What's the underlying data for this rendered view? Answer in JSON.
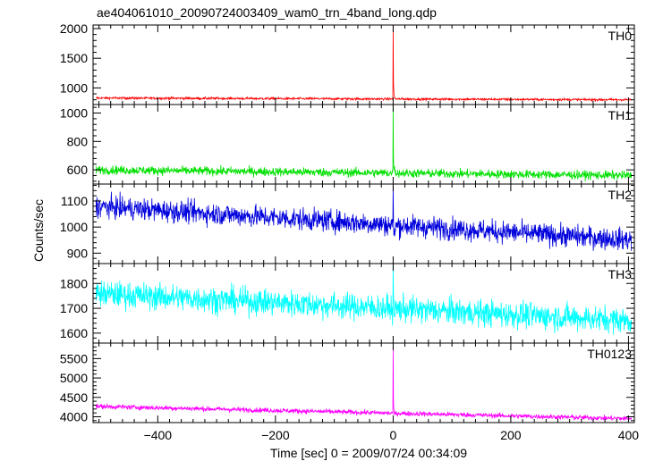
{
  "chart_data": {
    "type": "line",
    "title": "ae404061010_20090724003409_wam0_trn_4band_long.qdp",
    "xlabel": "Time [sec] 0 = 2009/07/24 00:34:09",
    "ylabel": "Counts/sec",
    "xlim": [
      -510,
      410
    ],
    "xticks": [
      -400,
      -200,
      0,
      200,
      400
    ],
    "xtick_labels": [
      "−400",
      "−200",
      "0",
      "200",
      "400"
    ],
    "grid": false,
    "panels": [
      {
        "label": "TH0",
        "color": "#ff0000",
        "ylim": [
          720,
          2060
        ],
        "yticks": [
          1000,
          1500,
          2000
        ],
        "baseline_start": 830,
        "baseline_end": 800,
        "noise": 14,
        "peak": 2060,
        "peak_time": 0,
        "decay_to": 860
      },
      {
        "label": "TH1",
        "color": "#00e000",
        "ylim": [
          500,
          1060
        ],
        "yticks": [
          600,
          800,
          1000
        ],
        "baseline_start": 600,
        "baseline_end": 560,
        "noise": 22,
        "peak": 1060,
        "peak_time": 0,
        "decay_to": 640
      },
      {
        "label": "TH2",
        "color": "#0000dd",
        "ylim": [
          860,
          1165
        ],
        "yticks": [
          900,
          1000,
          1100
        ],
        "baseline_start": 1080,
        "baseline_end": 950,
        "noise": 30,
        "peak": 1160,
        "peak_time": 0,
        "decay_to": 1020
      },
      {
        "label": "TH3",
        "color": "#00ffff",
        "ylim": [
          1560,
          1880
        ],
        "yticks": [
          1600,
          1700,
          1800
        ],
        "baseline_start": 1760,
        "baseline_end": 1650,
        "noise": 38,
        "peak": 1880,
        "peak_time": 0,
        "decay_to": 1740
      },
      {
        "label": "TH0123",
        "color": "#ff00ff",
        "ylim": [
          3850,
          5900
        ],
        "yticks": [
          4000,
          4500,
          5000,
          5500
        ],
        "baseline_start": 4270,
        "baseline_end": 3950,
        "noise": 45,
        "peak": 5800,
        "peak_time": 0,
        "decay_to": 4200
      }
    ]
  }
}
